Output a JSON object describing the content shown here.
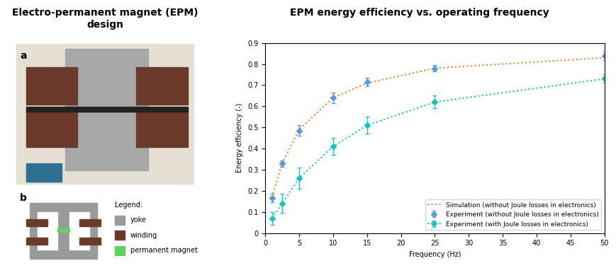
{
  "left_panel": {
    "title": "Electro-permanent magnet (EPM) design",
    "labels": [
      "a",
      "b"
    ],
    "legend_title": "Legend:",
    "legend": [
      {
        "name": "yoke",
        "color": "#9a9a9a"
      },
      {
        "name": "winding",
        "color": "#6b3a2a"
      },
      {
        "name": "permanent magnet",
        "color": "#5fd35f"
      }
    ]
  },
  "chart_data": {
    "type": "line",
    "title": "EPM energy efficiency vs. operating frequency",
    "x_label": "Frequency (Hz)",
    "y_label": "Energy efficiency (-)",
    "x": [
      1,
      2.5,
      5,
      10,
      15,
      25,
      50
    ],
    "xlim": [
      0,
      50
    ],
    "xticks": [
      0,
      5,
      10,
      15,
      20,
      25,
      30,
      35,
      40,
      45,
      50
    ],
    "ylim": [
      0,
      0.9
    ],
    "yticks": [
      0,
      0.1,
      0.2,
      0.3,
      0.4,
      0.5,
      0.6,
      0.7,
      0.8,
      0.9
    ],
    "grid": false,
    "legend": "lower right",
    "series": [
      {
        "name": "Simulation (without Joule losses in electronics)",
        "color": "#f07f3c",
        "line_style": "dotted",
        "marker": "none",
        "values": [
          0.17,
          0.33,
          0.49,
          0.64,
          0.71,
          0.78,
          0.83
        ]
      },
      {
        "name": "Experiment (without Joule losses in electronics)",
        "color": "#5b9bd5",
        "line_style": "none",
        "marker": "diamond",
        "values": [
          0.165,
          0.33,
          0.485,
          0.64,
          0.715,
          0.78,
          0.84
        ],
        "errors": [
          0.02,
          0.015,
          0.025,
          0.025,
          0.02,
          0.015,
          0.02
        ]
      },
      {
        "name": "Experiment (with Joule losses in electronics)",
        "color": "#19c3c3",
        "line_style": "dotted",
        "marker": "diamond",
        "values": [
          0.07,
          0.14,
          0.26,
          0.41,
          0.51,
          0.62,
          0.73
        ],
        "errors": [
          0.03,
          0.045,
          0.05,
          0.04,
          0.04,
          0.03,
          0.02
        ]
      }
    ]
  }
}
